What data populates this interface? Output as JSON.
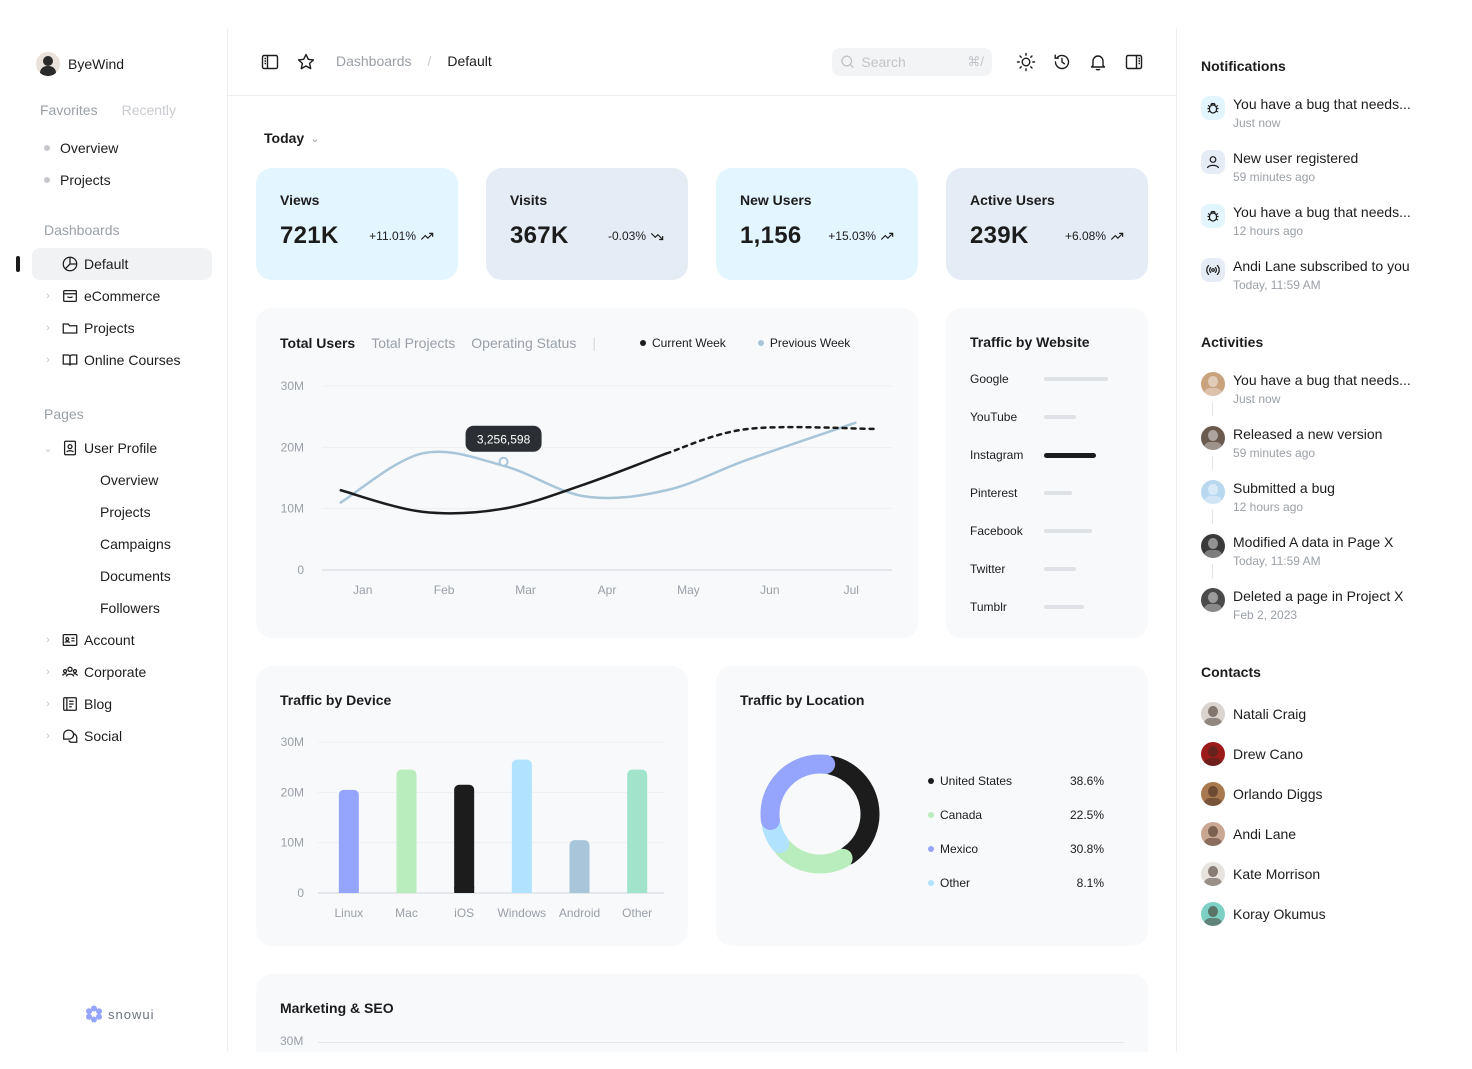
{
  "brand": {
    "name": "ByeWind"
  },
  "sidebar": {
    "tabs": [
      "Favorites",
      "Recently"
    ],
    "favorites": [
      "Overview",
      "Projects"
    ],
    "dashboards_title": "Dashboards",
    "dashboards": [
      {
        "label": "Default",
        "icon": "pie-chart-icon",
        "active": true
      },
      {
        "label": "eCommerce",
        "icon": "shopping-bag-icon"
      },
      {
        "label": "Projects",
        "icon": "folder-icon"
      },
      {
        "label": "Online Courses",
        "icon": "book-open-icon"
      }
    ],
    "pages_title": "Pages",
    "user_profile": {
      "label": "User Profile",
      "icon": "id-badge-icon"
    },
    "user_profile_sub": [
      "Overview",
      "Projects",
      "Campaigns",
      "Documents",
      "Followers"
    ],
    "pages": [
      {
        "label": "Account",
        "icon": "id-card-icon"
      },
      {
        "label": "Corporate",
        "icon": "users-group-icon"
      },
      {
        "label": "Blog",
        "icon": "notebook-icon"
      },
      {
        "label": "Social",
        "icon": "chat-bubbles-icon"
      }
    ],
    "footer_logo": "snowui"
  },
  "topbar": {
    "breadcrumb": [
      "Dashboards",
      "/",
      "Default"
    ],
    "search_placeholder": "Search",
    "search_shortcut": "⌘/"
  },
  "main": {
    "period": "Today",
    "kpis": [
      {
        "label": "Views",
        "value": "721K",
        "change": "+11.01%",
        "trend": "up",
        "bg": "#e3f5ff"
      },
      {
        "label": "Visits",
        "value": "367K",
        "change": "-0.03%",
        "trend": "down",
        "bg": "#e5ecf6"
      },
      {
        "label": "New Users",
        "value": "1,156",
        "change": "+15.03%",
        "trend": "up",
        "bg": "#e3f5ff"
      },
      {
        "label": "Active Users",
        "value": "239K",
        "change": "+6.08%",
        "trend": "up",
        "bg": "#e5ecf6"
      }
    ],
    "users_chart": {
      "tabs": [
        "Total Users",
        "Total Projects",
        "Operating Status"
      ],
      "legend": [
        {
          "name": "Current Week",
          "color": "#1c1c1c"
        },
        {
          "name": "Previous Week",
          "color": "#a8c5da"
        }
      ],
      "tooltip": "3,256,598"
    },
    "traffic_website_title": "Traffic by Website",
    "traffic_device_title": "Traffic by Device",
    "traffic_location": {
      "title": "Traffic by Location",
      "rows": [
        {
          "name": "United States",
          "pct": "38.6%",
          "color": "#1c1c1c"
        },
        {
          "name": "Canada",
          "pct": "22.5%",
          "color": "#baedbd"
        },
        {
          "name": "Mexico",
          "pct": "30.8%",
          "color": "#95a4fc"
        },
        {
          "name": "Other",
          "pct": "8.1%",
          "color": "#b1e3ff"
        }
      ]
    },
    "marketing_title": "Marketing & SEO",
    "marketing_axis_top": "30M"
  },
  "chart_data": [
    {
      "type": "line",
      "title": "Total Users",
      "x": [
        "Jan",
        "Feb",
        "Mar",
        "Apr",
        "May",
        "Jun",
        "Jul"
      ],
      "y_ticks": [
        "0",
        "10M",
        "20M",
        "30M"
      ],
      "ylim": [
        0,
        30
      ],
      "series": [
        {
          "name": "Current Week",
          "values": [
            13,
            9.5,
            10,
            14,
            19,
            23,
            23
          ],
          "forecast_from": "May"
        },
        {
          "name": "Previous Week",
          "values": [
            11,
            19,
            17,
            12,
            13,
            18,
            24
          ]
        }
      ],
      "grid": true
    },
    {
      "type": "bar",
      "title": "Traffic by Website",
      "categories": [
        "Google",
        "YouTube",
        "Instagram",
        "Pinterest",
        "Facebook",
        "Twitter",
        "Tumblr"
      ],
      "values": [
        80,
        40,
        65,
        35,
        60,
        40,
        50
      ],
      "highlight": "Instagram"
    },
    {
      "type": "bar",
      "title": "Traffic by Device",
      "categories": [
        "Linux",
        "Mac",
        "iOS",
        "Windows",
        "Android",
        "Other"
      ],
      "y_ticks": [
        "0",
        "10M",
        "20M",
        "30M"
      ],
      "ylim": [
        0,
        30
      ],
      "values": [
        20.5,
        24.5,
        21.5,
        26.5,
        10.5,
        24.5
      ],
      "colors": [
        "#95a4fc",
        "#baedbd",
        "#1c1c1c",
        "#b1e3ff",
        "#a8c5da",
        "#a1e3cb"
      ],
      "grid": true
    },
    {
      "type": "pie",
      "title": "Traffic by Location",
      "categories": [
        "United States",
        "Canada",
        "Mexico",
        "Other"
      ],
      "values": [
        38.6,
        22.5,
        30.8,
        8.1
      ],
      "colors": [
        "#1c1c1c",
        "#baedbd",
        "#95a4fc",
        "#b1e3ff"
      ]
    }
  ],
  "rpanel": {
    "notifications_title": "Notifications",
    "notifications": [
      {
        "text": "You have a bug that needs...",
        "time": "Just now",
        "icon": "bug-icon",
        "bg": "#e3f5ff"
      },
      {
        "text": "New user registered",
        "time": "59 minutes ago",
        "icon": "user-icon",
        "bg": "#e5ecf6"
      },
      {
        "text": "You have a bug that needs...",
        "time": "12 hours ago",
        "icon": "bug-icon",
        "bg": "#e3f5ff"
      },
      {
        "text": "Andi Lane subscribed to you",
        "time": "Today, 11:59 AM",
        "icon": "broadcast-icon",
        "bg": "#e5ecf6"
      }
    ],
    "activities_title": "Activities",
    "activities": [
      {
        "text": "You have a bug that needs...",
        "time": "Just now",
        "color": "#c9a27e"
      },
      {
        "text": "Released a new version",
        "time": "59 minutes ago",
        "color": "#6b5a4e"
      },
      {
        "text": "Submitted a bug",
        "time": "12 hours ago",
        "color": "#b8d8f0"
      },
      {
        "text": "Modified A data in Page X",
        "time": "Today, 11:59 AM",
        "color": "#3a3a3a"
      },
      {
        "text": "Deleted a page in Project X",
        "time": "Feb 2, 2023",
        "color": "#4a4a4a"
      }
    ],
    "contacts_title": "Contacts",
    "contacts": [
      {
        "name": "Natali Craig",
        "color": "#d9d4cf"
      },
      {
        "name": "Drew Cano",
        "color": "#9b1b1b"
      },
      {
        "name": "Orlando Diggs",
        "color": "#a9794f"
      },
      {
        "name": "Andi Lane",
        "color": "#caa792"
      },
      {
        "name": "Kate Morrison",
        "color": "#e7e3df"
      },
      {
        "name": "Koray Okumus",
        "color": "#7fd0c4"
      }
    ]
  }
}
